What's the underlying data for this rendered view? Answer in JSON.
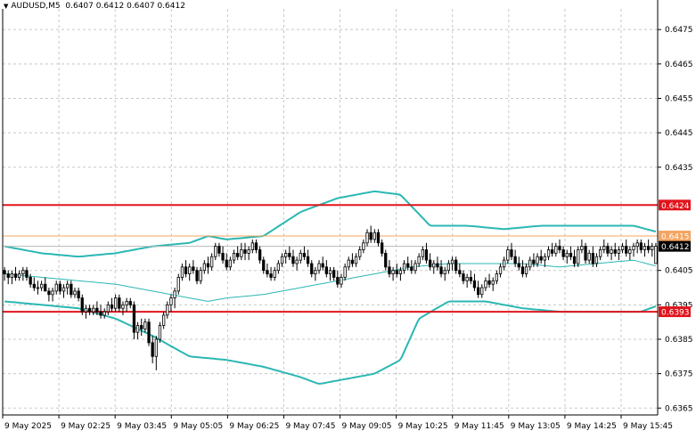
{
  "header": {
    "symbol": "AUDUSD,M5",
    "ohlc": "0.6407 0.6412 0.6407 0.6412"
  },
  "colors": {
    "background": "#ffffff",
    "grid": "#c8c8c8",
    "axis": "#000000",
    "candle_up": "#ffffff",
    "candle_down": "#000000",
    "candle_wick": "#000000",
    "band": "#2bb7b3",
    "middle_band": "#2bb7b3",
    "level_red": "#e0141c",
    "level_orange": "#f4a460",
    "price_line": "#b8b8b8"
  },
  "chart_data": {
    "type": "candlestick",
    "ylim": [
      0.6363,
      0.6481
    ],
    "y_ticks": [
      "0.6475",
      "0.6465",
      "0.6455",
      "0.6445",
      "0.6435",
      "0.6405",
      "0.6395",
      "0.6385",
      "0.6375",
      "0.6365"
    ],
    "x_ticks": [
      "9 May 2025",
      "9 May 02:25",
      "9 May 03:45",
      "9 May 05:05",
      "9 May 06:25",
      "9 May 07:45",
      "9 May 09:05",
      "9 May 10:25",
      "9 May 11:45",
      "9 May 13:05",
      "9 May 14:25",
      "9 May 15:45"
    ],
    "levels": [
      {
        "label": "0.6424",
        "value": 0.6424,
        "style": "red"
      },
      {
        "label": "0.6415",
        "value": 0.6415,
        "style": "orange"
      },
      {
        "label": "0.6393",
        "value": 0.6393,
        "style": "red"
      }
    ],
    "current_price": {
      "label": "0.6412",
      "value": 0.6412
    },
    "bollinger_anchors": {
      "upper": [
        [
          0,
          0.6412
        ],
        [
          10,
          0.641
        ],
        [
          20,
          0.6409
        ],
        [
          30,
          0.641
        ],
        [
          40,
          0.6412
        ],
        [
          50,
          0.6413
        ],
        [
          55,
          0.6415
        ],
        [
          60,
          0.6414
        ],
        [
          70,
          0.6415
        ],
        [
          80,
          0.6422
        ],
        [
          90,
          0.6426
        ],
        [
          100,
          0.6428
        ],
        [
          107,
          0.6427
        ],
        [
          115,
          0.6418
        ],
        [
          125,
          0.6418
        ],
        [
          135,
          0.6417
        ],
        [
          145,
          0.6418
        ],
        [
          155,
          0.6418
        ],
        [
          170,
          0.6418
        ],
        [
          177,
          0.6416
        ]
      ],
      "middle": [
        [
          0,
          0.6404
        ],
        [
          10,
          0.6403
        ],
        [
          20,
          0.6402
        ],
        [
          30,
          0.6401
        ],
        [
          40,
          0.6399
        ],
        [
          50,
          0.6397
        ],
        [
          55,
          0.6396
        ],
        [
          60,
          0.6397
        ],
        [
          70,
          0.6398
        ],
        [
          80,
          0.64
        ],
        [
          90,
          0.6402
        ],
        [
          100,
          0.6404
        ],
        [
          110,
          0.6406
        ],
        [
          120,
          0.6407
        ],
        [
          130,
          0.6407
        ],
        [
          140,
          0.6407
        ],
        [
          150,
          0.6406
        ],
        [
          160,
          0.6407
        ],
        [
          170,
          0.6408
        ],
        [
          177,
          0.6406
        ]
      ],
      "lower": [
        [
          0,
          0.6396
        ],
        [
          10,
          0.6395
        ],
        [
          20,
          0.6394
        ],
        [
          30,
          0.6391
        ],
        [
          40,
          0.6386
        ],
        [
          50,
          0.638
        ],
        [
          60,
          0.6379
        ],
        [
          70,
          0.6377
        ],
        [
          80,
          0.6374
        ],
        [
          85,
          0.6372
        ],
        [
          90,
          0.6373
        ],
        [
          100,
          0.6375
        ],
        [
          107,
          0.6379
        ],
        [
          112,
          0.6391
        ],
        [
          120,
          0.6396
        ],
        [
          130,
          0.6396
        ],
        [
          140,
          0.6394
        ],
        [
          150,
          0.6393
        ],
        [
          160,
          0.6393
        ],
        [
          172,
          0.6393
        ],
        [
          177,
          0.6395
        ]
      ]
    },
    "candles": [
      [
        0.6405,
        0.6406,
        0.6402,
        0.6404
      ],
      [
        0.6404,
        0.6405,
        0.6401,
        0.6403
      ],
      [
        0.6403,
        0.6405,
        0.6401,
        0.6404
      ],
      [
        0.6404,
        0.6406,
        0.6402,
        0.6403
      ],
      [
        0.6403,
        0.6405,
        0.6402,
        0.6404
      ],
      [
        0.6404,
        0.6406,
        0.6402,
        0.6405
      ],
      [
        0.6405,
        0.6406,
        0.6402,
        0.6403
      ],
      [
        0.6403,
        0.6404,
        0.64,
        0.6401
      ],
      [
        0.6401,
        0.6403,
        0.6399,
        0.64
      ],
      [
        0.64,
        0.6402,
        0.6398,
        0.64
      ],
      [
        0.64,
        0.6402,
        0.6399,
        0.6401
      ],
      [
        0.6401,
        0.6403,
        0.6399,
        0.6399
      ],
      [
        0.6399,
        0.64,
        0.6396,
        0.6398
      ],
      [
        0.6398,
        0.64,
        0.6396,
        0.6399
      ],
      [
        0.6399,
        0.6402,
        0.6398,
        0.6401
      ],
      [
        0.6401,
        0.6402,
        0.6398,
        0.6399
      ],
      [
        0.6399,
        0.6401,
        0.6397,
        0.64
      ],
      [
        0.64,
        0.6402,
        0.6398,
        0.6401
      ],
      [
        0.6401,
        0.6402,
        0.6397,
        0.6398
      ],
      [
        0.6398,
        0.64,
        0.6397,
        0.6399
      ],
      [
        0.6399,
        0.64,
        0.6396,
        0.6397
      ],
      [
        0.6397,
        0.6398,
        0.6392,
        0.6393
      ],
      [
        0.6393,
        0.6395,
        0.6391,
        0.6394
      ],
      [
        0.6394,
        0.6395,
        0.6392,
        0.6393
      ],
      [
        0.6393,
        0.6395,
        0.6392,
        0.6394
      ],
      [
        0.6394,
        0.6396,
        0.6392,
        0.6393
      ],
      [
        0.6393,
        0.6395,
        0.6391,
        0.6392
      ],
      [
        0.6392,
        0.6394,
        0.6391,
        0.6393
      ],
      [
        0.6393,
        0.6396,
        0.6392,
        0.6395
      ],
      [
        0.6395,
        0.6397,
        0.6393,
        0.6394
      ],
      [
        0.6394,
        0.6398,
        0.6393,
        0.6397
      ],
      [
        0.6397,
        0.6398,
        0.6393,
        0.6394
      ],
      [
        0.6394,
        0.6396,
        0.6392,
        0.6395
      ],
      [
        0.6395,
        0.6397,
        0.6393,
        0.6396
      ],
      [
        0.6396,
        0.6397,
        0.6394,
        0.6395
      ],
      [
        0.6395,
        0.6396,
        0.6385,
        0.6387
      ],
      [
        0.6387,
        0.639,
        0.6385,
        0.6389
      ],
      [
        0.6389,
        0.6391,
        0.6386,
        0.6388
      ],
      [
        0.6388,
        0.6391,
        0.6387,
        0.639
      ],
      [
        0.639,
        0.6391,
        0.6383,
        0.6384
      ],
      [
        0.6384,
        0.6386,
        0.6378,
        0.638
      ],
      [
        0.638,
        0.6386,
        0.6376,
        0.6385
      ],
      [
        0.6385,
        0.639,
        0.6384,
        0.6389
      ],
      [
        0.6389,
        0.6393,
        0.6388,
        0.6392
      ],
      [
        0.6392,
        0.6396,
        0.6391,
        0.6395
      ],
      [
        0.6395,
        0.6398,
        0.6393,
        0.6397
      ],
      [
        0.6397,
        0.64,
        0.6394,
        0.6399
      ],
      [
        0.6399,
        0.6404,
        0.6398,
        0.6403
      ],
      [
        0.6403,
        0.6407,
        0.6402,
        0.6406
      ],
      [
        0.6406,
        0.6408,
        0.6403,
        0.6404
      ],
      [
        0.6404,
        0.6407,
        0.6402,
        0.6406
      ],
      [
        0.6406,
        0.6408,
        0.6404,
        0.6405
      ],
      [
        0.6405,
        0.6406,
        0.6401,
        0.6402
      ],
      [
        0.6402,
        0.6406,
        0.6401,
        0.6405
      ],
      [
        0.6405,
        0.6408,
        0.6404,
        0.6407
      ],
      [
        0.6407,
        0.6409,
        0.6404,
        0.6406
      ],
      [
        0.6406,
        0.641,
        0.6405,
        0.6409
      ],
      [
        0.6409,
        0.6413,
        0.6408,
        0.6412
      ],
      [
        0.6412,
        0.6413,
        0.6409,
        0.641
      ],
      [
        0.641,
        0.6412,
        0.6407,
        0.6408
      ],
      [
        0.6408,
        0.641,
        0.6405,
        0.6406
      ],
      [
        0.6406,
        0.6409,
        0.6405,
        0.6408
      ],
      [
        0.6408,
        0.6411,
        0.6407,
        0.641
      ],
      [
        0.641,
        0.6412,
        0.6408,
        0.6409
      ],
      [
        0.6409,
        0.6413,
        0.6408,
        0.6411
      ],
      [
        0.6411,
        0.6413,
        0.6408,
        0.641
      ],
      [
        0.641,
        0.6412,
        0.6408,
        0.6411
      ],
      [
        0.6411,
        0.6414,
        0.641,
        0.6413
      ],
      [
        0.6413,
        0.6414,
        0.641,
        0.6411
      ],
      [
        0.6411,
        0.6412,
        0.6407,
        0.6408
      ],
      [
        0.6408,
        0.6409,
        0.6404,
        0.6405
      ],
      [
        0.6405,
        0.6407,
        0.6403,
        0.6404
      ],
      [
        0.6404,
        0.6406,
        0.6402,
        0.6403
      ],
      [
        0.6403,
        0.6406,
        0.6402,
        0.6405
      ],
      [
        0.6405,
        0.6408,
        0.6404,
        0.6407
      ],
      [
        0.6407,
        0.641,
        0.6406,
        0.6409
      ],
      [
        0.6409,
        0.6411,
        0.6407,
        0.641
      ],
      [
        0.641,
        0.6412,
        0.6408,
        0.6409
      ],
      [
        0.6409,
        0.6411,
        0.6406,
        0.6407
      ],
      [
        0.6407,
        0.6409,
        0.6405,
        0.6408
      ],
      [
        0.6408,
        0.6411,
        0.6407,
        0.641
      ],
      [
        0.641,
        0.6412,
        0.6408,
        0.6409
      ],
      [
        0.6409,
        0.6411,
        0.6406,
        0.6407
      ],
      [
        0.6407,
        0.6408,
        0.6403,
        0.6404
      ],
      [
        0.6404,
        0.6406,
        0.6402,
        0.6405
      ],
      [
        0.6405,
        0.6408,
        0.6404,
        0.6407
      ],
      [
        0.6407,
        0.6409,
        0.6405,
        0.6406
      ],
      [
        0.6406,
        0.6408,
        0.6403,
        0.6404
      ],
      [
        0.6404,
        0.6406,
        0.6402,
        0.6405
      ],
      [
        0.6405,
        0.6406,
        0.6402,
        0.6403
      ],
      [
        0.6403,
        0.6405,
        0.64,
        0.6401
      ],
      [
        0.6401,
        0.6404,
        0.64,
        0.6403
      ],
      [
        0.6403,
        0.6407,
        0.6402,
        0.6406
      ],
      [
        0.6406,
        0.6409,
        0.6405,
        0.6408
      ],
      [
        0.6408,
        0.641,
        0.6406,
        0.6407
      ],
      [
        0.6407,
        0.641,
        0.6406,
        0.6409
      ],
      [
        0.6409,
        0.6412,
        0.6408,
        0.6411
      ],
      [
        0.6411,
        0.6414,
        0.641,
        0.6413
      ],
      [
        0.6413,
        0.6417,
        0.6412,
        0.6416
      ],
      [
        0.6416,
        0.6418,
        0.6413,
        0.6414
      ],
      [
        0.6414,
        0.6417,
        0.6413,
        0.6416
      ],
      [
        0.6416,
        0.6417,
        0.6412,
        0.6413
      ],
      [
        0.6413,
        0.6414,
        0.6409,
        0.641
      ],
      [
        0.641,
        0.6411,
        0.6405,
        0.6406
      ],
      [
        0.6406,
        0.6408,
        0.6403,
        0.6404
      ],
      [
        0.6404,
        0.6406,
        0.6402,
        0.6405
      ],
      [
        0.6405,
        0.6407,
        0.6403,
        0.6404
      ],
      [
        0.6404,
        0.6406,
        0.6402,
        0.6405
      ],
      [
        0.6405,
        0.6408,
        0.6404,
        0.6407
      ],
      [
        0.6407,
        0.6409,
        0.6405,
        0.6406
      ],
      [
        0.6406,
        0.6408,
        0.6404,
        0.6405
      ],
      [
        0.6405,
        0.6408,
        0.6404,
        0.6407
      ],
      [
        0.6407,
        0.641,
        0.6406,
        0.6409
      ],
      [
        0.6409,
        0.6412,
        0.6408,
        0.6411
      ],
      [
        0.6411,
        0.6413,
        0.6407,
        0.6408
      ],
      [
        0.6408,
        0.641,
        0.6405,
        0.6406
      ],
      [
        0.6406,
        0.6408,
        0.6404,
        0.6407
      ],
      [
        0.6407,
        0.6409,
        0.6405,
        0.6406
      ],
      [
        0.6406,
        0.6408,
        0.6403,
        0.6404
      ],
      [
        0.6404,
        0.6406,
        0.6402,
        0.6405
      ],
      [
        0.6405,
        0.6408,
        0.6404,
        0.6407
      ],
      [
        0.6407,
        0.6409,
        0.6405,
        0.6408
      ],
      [
        0.6408,
        0.6409,
        0.6404,
        0.6405
      ],
      [
        0.6405,
        0.6407,
        0.6403,
        0.6404
      ],
      [
        0.6404,
        0.6405,
        0.6401,
        0.6402
      ],
      [
        0.6402,
        0.6404,
        0.64,
        0.6403
      ],
      [
        0.6403,
        0.6405,
        0.6401,
        0.6402
      ],
      [
        0.6402,
        0.6404,
        0.6399,
        0.64
      ],
      [
        0.64,
        0.6402,
        0.6397,
        0.6398
      ],
      [
        0.6398,
        0.6401,
        0.6397,
        0.64
      ],
      [
        0.64,
        0.6403,
        0.6399,
        0.6402
      ],
      [
        0.6402,
        0.6404,
        0.64,
        0.6401
      ],
      [
        0.6401,
        0.6403,
        0.6399,
        0.6402
      ],
      [
        0.6402,
        0.6405,
        0.6401,
        0.6404
      ],
      [
        0.6404,
        0.6407,
        0.6403,
        0.6406
      ],
      [
        0.6406,
        0.6409,
        0.6405,
        0.6408
      ],
      [
        0.6408,
        0.6412,
        0.6407,
        0.6411
      ],
      [
        0.6411,
        0.6413,
        0.6408,
        0.6409
      ],
      [
        0.6409,
        0.6411,
        0.6406,
        0.6407
      ],
      [
        0.6407,
        0.6409,
        0.6405,
        0.6406
      ],
      [
        0.6406,
        0.6408,
        0.6403,
        0.6404
      ],
      [
        0.6404,
        0.6407,
        0.6403,
        0.6406
      ],
      [
        0.6406,
        0.6409,
        0.6405,
        0.6408
      ],
      [
        0.6408,
        0.641,
        0.6406,
        0.6407
      ],
      [
        0.6407,
        0.641,
        0.6406,
        0.6409
      ],
      [
        0.6409,
        0.6411,
        0.6407,
        0.6408
      ],
      [
        0.6408,
        0.641,
        0.6406,
        0.6409
      ],
      [
        0.6409,
        0.6412,
        0.6408,
        0.6411
      ],
      [
        0.6411,
        0.6413,
        0.6409,
        0.641
      ],
      [
        0.641,
        0.6413,
        0.6409,
        0.6412
      ],
      [
        0.6412,
        0.6414,
        0.641,
        0.6411
      ],
      [
        0.6411,
        0.6412,
        0.6408,
        0.6409
      ],
      [
        0.6409,
        0.6411,
        0.6407,
        0.641
      ],
      [
        0.641,
        0.6412,
        0.6408,
        0.6409
      ],
      [
        0.6409,
        0.6411,
        0.6406,
        0.6407
      ],
      [
        0.6407,
        0.6412,
        0.6406,
        0.6411
      ],
      [
        0.6411,
        0.6414,
        0.641,
        0.6412
      ],
      [
        0.6412,
        0.6413,
        0.6407,
        0.6408
      ],
      [
        0.6408,
        0.6411,
        0.6407,
        0.641
      ],
      [
        0.641,
        0.6412,
        0.6406,
        0.6407
      ],
      [
        0.6407,
        0.641,
        0.6406,
        0.6409
      ],
      [
        0.6409,
        0.6412,
        0.6408,
        0.6411
      ],
      [
        0.6411,
        0.6414,
        0.641,
        0.6412
      ],
      [
        0.6412,
        0.6413,
        0.6409,
        0.641
      ],
      [
        0.641,
        0.6412,
        0.6408,
        0.6411
      ],
      [
        0.6411,
        0.6413,
        0.6409,
        0.641
      ],
      [
        0.641,
        0.6412,
        0.6408,
        0.6411
      ],
      [
        0.6411,
        0.6413,
        0.641,
        0.6412
      ],
      [
        0.6412,
        0.6414,
        0.6409,
        0.641
      ],
      [
        0.641,
        0.6412,
        0.6408,
        0.6411
      ],
      [
        0.6411,
        0.6413,
        0.6409,
        0.6412
      ],
      [
        0.6412,
        0.6414,
        0.641,
        0.6413
      ],
      [
        0.6413,
        0.6414,
        0.641,
        0.6411
      ],
      [
        0.6411,
        0.6413,
        0.6409,
        0.6412
      ],
      [
        0.6412,
        0.6414,
        0.641,
        0.6411
      ],
      [
        0.6411,
        0.6413,
        0.6409,
        0.6412
      ],
      [
        0.6407,
        0.6413,
        0.6407,
        0.6412
      ]
    ]
  }
}
